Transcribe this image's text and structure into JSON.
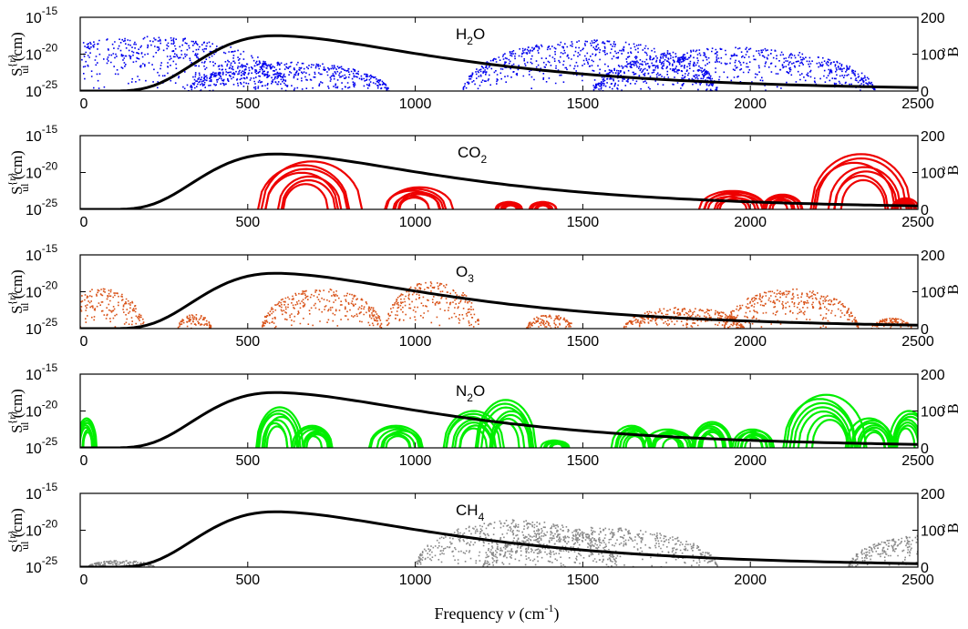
{
  "figure": {
    "xlabel_main": "Frequency ",
    "xlabel_symbol": "ν",
    "xlabel_unit_open": " (cm",
    "xlabel_unit_exp": "-1",
    "xlabel_unit_close": ")"
  },
  "axis_text": {
    "left_label_base": "S",
    "left_label_sup": "{r}",
    "left_label_sub": "ul",
    "left_label_unit": " (cm)",
    "right_label": "B",
    "right_label_accent": "~",
    "log_base": "10",
    "exponents": [
      "-15",
      "-20",
      "-25"
    ],
    "x_ticks": [
      "0",
      "500",
      "1000",
      "1500",
      "2000",
      "2500"
    ],
    "right_ticks": [
      "200",
      "100",
      "0"
    ]
  },
  "chart_data": [
    {
      "type": "scatter",
      "molecule": {
        "base": "H",
        "sub": "2",
        "rest": "O"
      },
      "color": "#0000ee",
      "xlim": [
        0,
        2500
      ],
      "ylim_log10": [
        -25,
        -15
      ],
      "y2lim": [
        0,
        200
      ],
      "bands": [
        {
          "center": 200,
          "halfwidth": 420,
          "peak": -17.5
        },
        {
          "center": 620,
          "halfwidth": 300,
          "peak": -21.0
        },
        {
          "center": 1520,
          "halfwidth": 380,
          "peak": -18.0
        },
        {
          "center": 1950,
          "halfwidth": 420,
          "peak": -19.0
        }
      ],
      "planck_curve": {
        "peak_x": 580,
        "peak_y": 150
      }
    },
    {
      "type": "line",
      "molecule": {
        "base": "CO",
        "sub": "2",
        "rest": ""
      },
      "color": "#ee0000",
      "xlim": [
        0,
        2500
      ],
      "ylim_log10": [
        -25,
        -15
      ],
      "y2lim": [
        0,
        200
      ],
      "bands": [
        {
          "center": 670,
          "halfwidth": 150,
          "peak": -18.5
        },
        {
          "center": 1000,
          "halfwidth": 100,
          "peak": -22.0
        },
        {
          "center": 1280,
          "halfwidth": 40,
          "peak": -24.0
        },
        {
          "center": 1380,
          "halfwidth": 40,
          "peak": -24.0
        },
        {
          "center": 1950,
          "halfwidth": 100,
          "peak": -22.5
        },
        {
          "center": 2090,
          "halfwidth": 60,
          "peak": -23.0
        },
        {
          "center": 2330,
          "halfwidth": 150,
          "peak": -17.5
        },
        {
          "center": 2460,
          "halfwidth": 40,
          "peak": -23.5
        }
      ],
      "planck_curve": {
        "peak_x": 580,
        "peak_y": 150
      }
    },
    {
      "type": "scatter",
      "molecule": {
        "base": "O",
        "sub": "3",
        "rest": ""
      },
      "color": "#d95319",
      "xlim": [
        0,
        2500
      ],
      "ylim_log10": [
        -25,
        -15
      ],
      "y2lim": [
        0,
        200
      ],
      "bands": [
        {
          "center": 60,
          "halfwidth": 130,
          "peak": -19.5
        },
        {
          "center": 340,
          "halfwidth": 50,
          "peak": -23.0
        },
        {
          "center": 720,
          "halfwidth": 180,
          "peak": -19.5
        },
        {
          "center": 1050,
          "halfwidth": 140,
          "peak": -18.5
        },
        {
          "center": 1400,
          "halfwidth": 70,
          "peak": -23.0
        },
        {
          "center": 1800,
          "halfwidth": 180,
          "peak": -22.0
        },
        {
          "center": 2120,
          "halfwidth": 200,
          "peak": -19.5
        },
        {
          "center": 2420,
          "halfwidth": 60,
          "peak": -23.5
        }
      ],
      "planck_curve": {
        "peak_x": 580,
        "peak_y": 150
      }
    },
    {
      "type": "line",
      "molecule": {
        "base": "N",
        "sub": "2",
        "rest": "O"
      },
      "color": "#00ee00",
      "xlim": [
        0,
        2500
      ],
      "ylim_log10": [
        -25,
        -15
      ],
      "y2lim": [
        0,
        200
      ],
      "bands": [
        {
          "center": 20,
          "halfwidth": 30,
          "peak": -21.0
        },
        {
          "center": 590,
          "halfwidth": 70,
          "peak": -19.5
        },
        {
          "center": 700,
          "halfwidth": 60,
          "peak": -22.0
        },
        {
          "center": 950,
          "halfwidth": 80,
          "peak": -22.0
        },
        {
          "center": 1170,
          "halfwidth": 90,
          "peak": -20.0
        },
        {
          "center": 1280,
          "halfwidth": 90,
          "peak": -18.5
        },
        {
          "center": 1420,
          "halfwidth": 40,
          "peak": -24.0
        },
        {
          "center": 1650,
          "halfwidth": 60,
          "peak": -22.0
        },
        {
          "center": 1760,
          "halfwidth": 70,
          "peak": -22.5
        },
        {
          "center": 1880,
          "halfwidth": 60,
          "peak": -21.5
        },
        {
          "center": 2010,
          "halfwidth": 60,
          "peak": -22.5
        },
        {
          "center": 2220,
          "halfwidth": 120,
          "peak": -17.8
        },
        {
          "center": 2360,
          "halfwidth": 70,
          "peak": -21.0
        },
        {
          "center": 2470,
          "halfwidth": 60,
          "peak": -20.0
        }
      ],
      "planck_curve": {
        "peak_x": 580,
        "peak_y": 150
      }
    },
    {
      "type": "scatter",
      "molecule": {
        "base": "CH",
        "sub": "4",
        "rest": ""
      },
      "color": "#888888",
      "xlim": [
        0,
        2500
      ],
      "ylim_log10": [
        -25,
        -15
      ],
      "y2lim": [
        0,
        200
      ],
      "bands": [
        {
          "center": 120,
          "halfwidth": 100,
          "peak": -24.0
        },
        {
          "center": 1300,
          "halfwidth": 300,
          "peak": -18.5
        },
        {
          "center": 1550,
          "halfwidth": 350,
          "peak": -19.5
        },
        {
          "center": 2550,
          "halfwidth": 260,
          "peak": -20.5
        }
      ],
      "planck_curve": {
        "peak_x": 580,
        "peak_y": 150
      }
    }
  ]
}
